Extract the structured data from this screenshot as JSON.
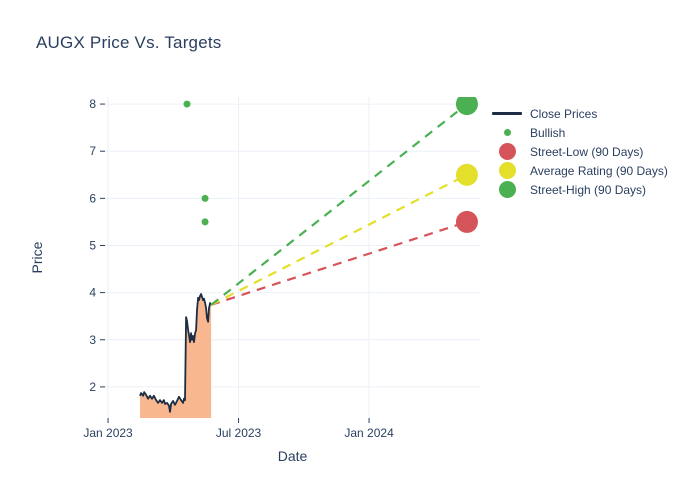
{
  "chart_data": {
    "type": "line",
    "title": "AUGX Price Vs. Targets",
    "xlabel": "Date",
    "ylabel": "Price",
    "x_unit": "months since Jan 2023",
    "x_range": [
      -0.14,
      17.1
    ],
    "y_range": [
      1.34,
      8.15
    ],
    "grid": true,
    "legend_position": "right",
    "x_ticks": [
      {
        "v": 0,
        "label": "Jan 2023"
      },
      {
        "v": 6,
        "label": "Jul 2023"
      },
      {
        "v": 12,
        "label": "Jan 2024"
      }
    ],
    "y_ticks": [
      2,
      3,
      4,
      5,
      6,
      7,
      8
    ],
    "close_prices": {
      "name": "Close Prices",
      "color": "#1d2d44",
      "fill_color": "#f8b78f",
      "x": [
        1.47,
        1.52,
        1.61,
        1.66,
        1.75,
        1.84,
        1.93,
        2.02,
        2.11,
        2.21,
        2.3,
        2.39,
        2.48,
        2.57,
        2.62,
        2.71,
        2.8,
        2.85,
        2.9,
        2.99,
        3.08,
        3.17,
        3.26,
        3.36,
        3.45,
        3.49,
        3.54,
        3.59,
        3.63,
        3.68,
        3.72,
        3.77,
        3.82,
        3.86,
        3.91,
        3.95,
        4.0,
        4.05,
        4.09,
        4.14,
        4.18,
        4.23,
        4.28,
        4.32,
        4.37,
        4.41,
        4.46,
        4.51,
        4.55,
        4.6,
        4.64,
        4.69,
        4.74
      ],
      "y": [
        1.81,
        1.87,
        1.81,
        1.89,
        1.83,
        1.75,
        1.81,
        1.75,
        1.81,
        1.72,
        1.66,
        1.72,
        1.66,
        1.72,
        1.64,
        1.66,
        1.6,
        1.47,
        1.64,
        1.7,
        1.62,
        1.7,
        1.79,
        1.72,
        1.66,
        1.75,
        1.72,
        3.48,
        3.4,
        3.21,
        3.1,
        2.95,
        3.14,
        3.0,
        3.08,
        2.95,
        3.14,
        3.21,
        3.63,
        3.89,
        3.84,
        3.93,
        3.97,
        3.91,
        3.84,
        3.87,
        3.78,
        3.67,
        3.46,
        3.38,
        3.67,
        3.78,
        3.74
      ]
    },
    "bullish": {
      "name": "Bullish",
      "color": "#4bb052",
      "x": [
        3.63,
        4.46,
        4.46
      ],
      "y": [
        8.0,
        6.0,
        5.5
      ]
    },
    "targets": [
      {
        "key": "street-low",
        "name": "Street-Low (90 Days)",
        "color": "#d5545a",
        "from": {
          "x": 4.74,
          "y": 3.74
        },
        "to": {
          "x": 16.5,
          "y": 5.5
        }
      },
      {
        "key": "average",
        "name": "Average Rating (90 Days)",
        "color": "#e3df2b",
        "from": {
          "x": 4.74,
          "y": 3.74
        },
        "to": {
          "x": 16.5,
          "y": 6.5
        }
      },
      {
        "key": "street-high",
        "name": "Street-High (90 Days)",
        "color": "#4bb052",
        "from": {
          "x": 4.74,
          "y": 3.74
        },
        "to": {
          "x": 16.5,
          "y": 8.0
        }
      }
    ],
    "legend": [
      {
        "label": "Close Prices",
        "swatch": "line",
        "color": "#1d2d44"
      },
      {
        "label": "Bullish",
        "swatch": "dot-small",
        "color": "#4bb052"
      },
      {
        "label": "Street-Low (90 Days)",
        "swatch": "dot-large",
        "color": "#d5545a"
      },
      {
        "label": "Average Rating (90 Days)",
        "swatch": "dot-large",
        "color": "#e3df2b"
      },
      {
        "label": "Street-High (90 Days)",
        "swatch": "dot-large",
        "color": "#4bb052"
      }
    ],
    "colors": {
      "background": "#ffffff",
      "grid": "#ebf0f8",
      "text": "#2a3f5f",
      "close_line": "#1d2d44",
      "area_fill": "#f8b78f",
      "bullish_green": "#4bb052",
      "target_red": "#d5545a",
      "target_yellow": "#e3df2b",
      "target_green": "#4bb052"
    }
  }
}
